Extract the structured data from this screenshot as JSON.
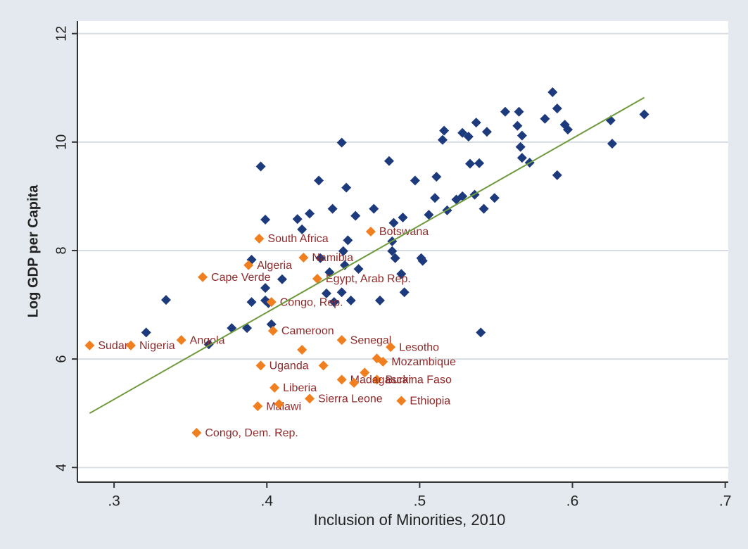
{
  "chart_data": {
    "type": "scatter",
    "x_label": "Inclusion of Minorities, 2010",
    "y_label": "Log GDP per Capita",
    "xlim": [
      0.276,
      0.702
    ],
    "ylim": [
      3.73,
      12.23
    ],
    "xticks": [
      {
        "value": 0.3,
        "label": ".3"
      },
      {
        "value": 0.4,
        "label": ".4"
      },
      {
        "value": 0.5,
        "label": ".5"
      },
      {
        "value": 0.6,
        "label": ".6"
      },
      {
        "value": 0.7,
        "label": ".7"
      }
    ],
    "yticks": [
      4,
      6,
      8,
      10,
      12
    ],
    "grid": true,
    "series": [
      {
        "color": "#1d3a7c",
        "x": [
          0.321,
          0.334,
          0.362,
          0.377,
          0.387,
          0.39,
          0.39,
          0.396,
          0.399,
          0.399,
          0.399,
          0.401,
          0.403,
          0.41,
          0.42,
          0.423,
          0.428,
          0.434,
          0.435,
          0.439,
          0.441,
          0.443,
          0.444,
          0.449,
          0.449,
          0.45,
          0.451,
          0.452,
          0.453,
          0.455,
          0.458,
          0.46,
          0.47,
          0.474,
          0.48,
          0.482,
          0.482,
          0.483,
          0.484,
          0.488,
          0.489,
          0.49,
          0.497,
          0.501,
          0.502,
          0.506,
          0.51,
          0.511,
          0.515,
          0.516,
          0.518,
          0.524,
          0.528,
          0.528,
          0.532,
          0.533,
          0.536,
          0.537,
          0.539,
          0.54,
          0.542,
          0.544,
          0.549,
          0.556,
          0.564,
          0.565,
          0.566,
          0.567,
          0.567,
          0.572,
          0.582,
          0.587,
          0.59,
          0.59,
          0.595,
          0.597,
          0.625,
          0.626,
          0.647
        ],
        "values": [
          6.49,
          7.09,
          6.27,
          6.57,
          6.57,
          7.05,
          7.83,
          9.55,
          8.57,
          7.31,
          7.08,
          7.03,
          6.64,
          7.47,
          8.58,
          8.39,
          8.68,
          9.29,
          7.86,
          7.21,
          7.6,
          8.77,
          7.05,
          9.99,
          7.23,
          7.99,
          7.73,
          9.16,
          8.19,
          7.08,
          8.64,
          7.66,
          8.77,
          7.08,
          9.65,
          8.17,
          7.99,
          8.51,
          7.86,
          7.57,
          8.61,
          7.23,
          9.29,
          7.86,
          7.81,
          8.66,
          8.97,
          9.36,
          10.04,
          10.21,
          8.74,
          8.94,
          10.17,
          9.0,
          10.1,
          9.6,
          9.03,
          10.36,
          9.61,
          6.49,
          8.77,
          10.19,
          8.97,
          10.56,
          10.3,
          10.56,
          9.91,
          10.12,
          9.71,
          9.62,
          10.43,
          10.92,
          10.62,
          9.39,
          10.32,
          10.23,
          10.4,
          9.97,
          10.51
        ]
      },
      {
        "color": "#f07f1f",
        "label_color": "#8e2a2a",
        "x": [
          0.284,
          0.311,
          0.344,
          0.358,
          0.395,
          0.388,
          0.424,
          0.433,
          0.403,
          0.404,
          0.468,
          0.449,
          0.481,
          0.476,
          0.472,
          0.396,
          0.405,
          0.394,
          0.428,
          0.488,
          0.354,
          0.449,
          0.423,
          0.437,
          0.457,
          0.464,
          0.408,
          0.472
        ],
        "values": [
          6.25,
          6.25,
          6.35,
          7.51,
          8.22,
          7.73,
          7.87,
          7.48,
          7.05,
          6.52,
          8.35,
          6.35,
          6.22,
          5.95,
          5.62,
          5.88,
          5.47,
          5.13,
          5.27,
          5.23,
          4.64,
          5.62,
          6.17,
          5.88,
          5.56,
          5.75,
          5.17,
          6.01
        ],
        "labels": [
          "Sudan",
          "Nigeria",
          "Angola",
          "Cape Verde",
          "South Africa",
          "Algeria",
          "Namibia",
          "Egypt, Arab Rep.",
          "Congo, Rep.",
          "Cameroon",
          "Botswana",
          "Senegal",
          "Lesotho",
          "Mozambique",
          "Burkina Faso",
          "Uganda",
          "Liberia",
          "Malawi",
          "Sierra Leone",
          "Ethiopia",
          "Congo, Dem. Rep.",
          "Madagascar",
          null,
          null,
          null,
          null,
          null,
          null
        ]
      }
    ],
    "fit_line": {
      "color": "#6e9a3c",
      "x": [
        0.284,
        0.647
      ],
      "values": [
        5.0,
        10.82
      ]
    }
  }
}
